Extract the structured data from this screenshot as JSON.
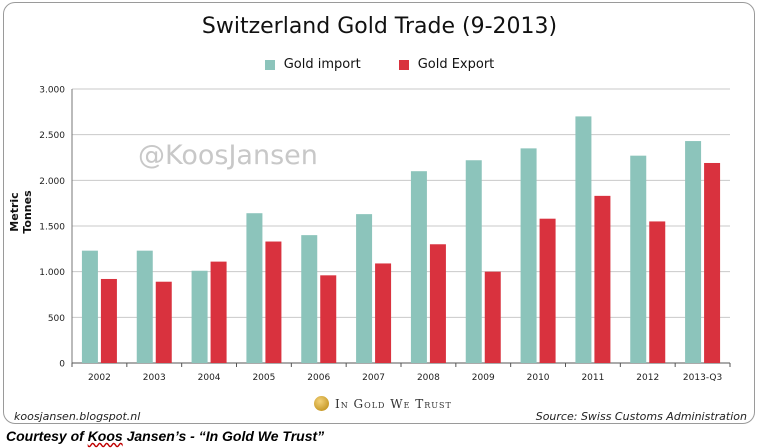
{
  "chart_data": {
    "type": "bar",
    "title": "Switzerland Gold Trade (9-2013)",
    "ylabel": "Metric Tonnes",
    "xlabel": "",
    "ylim": [
      0,
      3000
    ],
    "yticks": [
      0,
      500,
      1000,
      1500,
      2000,
      2500,
      3000
    ],
    "ytick_labels": [
      "0",
      "500",
      "1.000",
      "1.500",
      "2.000",
      "2.500",
      "3.000"
    ],
    "grid": true,
    "legend_position": "top",
    "categories": [
      "2002",
      "2003",
      "2004",
      "2005",
      "2006",
      "2007",
      "2008",
      "2009",
      "2010",
      "2011",
      "2012",
      "2013-Q3"
    ],
    "series": [
      {
        "name": "Gold import",
        "color": "#8cc4bb",
        "values": [
          1230,
          1230,
          1010,
          1640,
          1400,
          1630,
          2100,
          2220,
          2350,
          2700,
          2270,
          2430
        ]
      },
      {
        "name": "Gold Export",
        "color": "#d9323e",
        "values": [
          920,
          890,
          1110,
          1330,
          960,
          1090,
          1300,
          1000,
          1580,
          1830,
          1550,
          2190
        ]
      }
    ]
  },
  "watermark": "@KoosJansen",
  "footer": {
    "left": "koosjansen.blogspot.nl",
    "center": "In Gold We Trust",
    "right": "Source: Swiss Customs Administration"
  },
  "caption": {
    "prefix": "Courtesy of ",
    "name": "Koos",
    "suffix": " Jansen’s - “In Gold We Trust”"
  }
}
